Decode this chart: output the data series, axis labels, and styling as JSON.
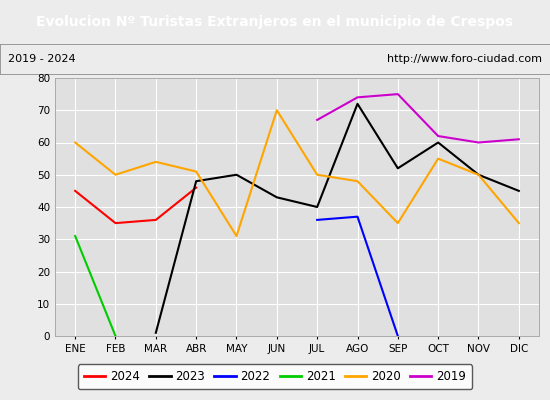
{
  "title": "Evolucion Nº Turistas Extranjeros en el municipio de Crespos",
  "title_color": "#ffffff",
  "title_bg_color": "#4472c4",
  "subtitle_left": "2019 - 2024",
  "subtitle_right": "http://www.foro-ciudad.com",
  "months": [
    "ENE",
    "FEB",
    "MAR",
    "ABR",
    "MAY",
    "JUN",
    "JUL",
    "AGO",
    "SEP",
    "OCT",
    "NOV",
    "DIC"
  ],
  "ylim": [
    0,
    80
  ],
  "yticks": [
    0,
    10,
    20,
    30,
    40,
    50,
    60,
    70,
    80
  ],
  "series": {
    "2024": {
      "color": "#ff0000",
      "values": [
        45,
        35,
        36,
        46,
        null,
        null,
        null,
        null,
        null,
        null,
        null,
        null
      ]
    },
    "2023": {
      "color": "#000000",
      "values": [
        null,
        null,
        1,
        48,
        50,
        43,
        40,
        72,
        52,
        60,
        50,
        45
      ]
    },
    "2022": {
      "color": "#0000ff",
      "values": [
        null,
        null,
        null,
        null,
        null,
        null,
        36,
        37,
        0,
        null,
        null,
        null
      ]
    },
    "2021": {
      "color": "#00cc00",
      "values": [
        31,
        0,
        null,
        null,
        null,
        null,
        null,
        null,
        null,
        null,
        null,
        null
      ]
    },
    "2020": {
      "color": "#ffa500",
      "values": [
        60,
        50,
        54,
        51,
        31,
        70,
        50,
        48,
        35,
        55,
        50,
        35
      ]
    },
    "2019": {
      "color": "#cc00cc",
      "values": [
        null,
        null,
        null,
        null,
        null,
        null,
        67,
        74,
        75,
        62,
        60,
        61
      ]
    }
  },
  "legend_order": [
    "2024",
    "2023",
    "2022",
    "2021",
    "2020",
    "2019"
  ],
  "bg_color": "#ececec",
  "plot_bg_color": "#e0e0e0",
  "grid_color": "#ffffff"
}
